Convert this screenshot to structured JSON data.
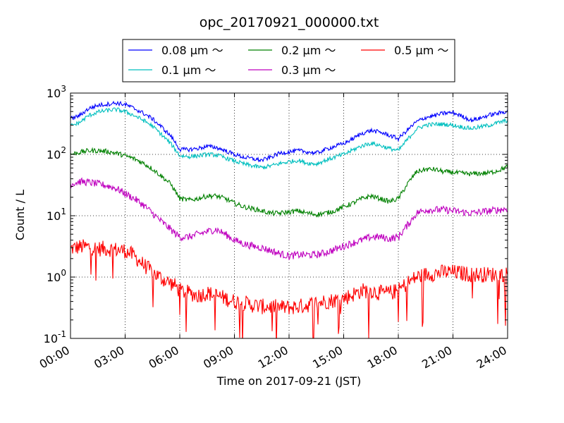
{
  "chart_data": {
    "type": "line",
    "title": "opc_20170921_000000.txt",
    "xlabel": "Time on 2017-09-21 (JST)",
    "ylabel": "Count / L",
    "x_unit": "hours",
    "xlim": [
      0,
      24
    ],
    "ylim": [
      0.1,
      1000
    ],
    "y_scale": "log",
    "grid": true,
    "legend_position": "top-center",
    "legend_columns": 3,
    "x_ticks": [
      0,
      3,
      6,
      9,
      12,
      15,
      18,
      21,
      24
    ],
    "x_tick_labels": [
      "00:00",
      "03:00",
      "06:00",
      "09:00",
      "12:00",
      "15:00",
      "18:00",
      "21:00",
      "24:00"
    ],
    "y_ticks": [
      0.1,
      1,
      10,
      100,
      1000
    ],
    "y_tick_labels": [
      {
        "base": "10",
        "exp": "-1"
      },
      {
        "base": "10",
        "exp": "0"
      },
      {
        "base": "10",
        "exp": "1"
      },
      {
        "base": "10",
        "exp": "2"
      },
      {
        "base": "10",
        "exp": "3"
      }
    ],
    "x": [
      0,
      0.5,
      1,
      1.5,
      2,
      2.5,
      3,
      3.5,
      4,
      4.5,
      5,
      5.5,
      5.8,
      6,
      6.5,
      7,
      7.5,
      8,
      8.5,
      9,
      9.5,
      10,
      10.5,
      11,
      11.5,
      12,
      12.5,
      13,
      13.5,
      14,
      14.5,
      15,
      15.5,
      16,
      16.5,
      17,
      17.5,
      18,
      18.5,
      19,
      19.5,
      20,
      20.5,
      21,
      21.5,
      22,
      22.5,
      23,
      23.5,
      24
    ],
    "series": [
      {
        "name": "0.08 μm ～",
        "color": "#0000ff",
        "values": [
          380,
          430,
          560,
          630,
          660,
          690,
          650,
          560,
          470,
          380,
          280,
          200,
          150,
          120,
          120,
          125,
          135,
          130,
          115,
          100,
          90,
          85,
          80,
          90,
          105,
          110,
          115,
          110,
          105,
          120,
          135,
          150,
          180,
          220,
          245,
          230,
          205,
          180,
          250,
          340,
          400,
          430,
          470,
          480,
          420,
          360,
          390,
          440,
          470,
          510
        ]
      },
      {
        "name": "0.1 μm ～",
        "color": "#00bfbf",
        "values": [
          290,
          330,
          430,
          490,
          520,
          540,
          500,
          430,
          360,
          290,
          210,
          150,
          115,
          95,
          92,
          95,
          100,
          98,
          88,
          78,
          70,
          65,
          61,
          65,
          71,
          76,
          80,
          72,
          70,
          80,
          90,
          100,
          118,
          138,
          152,
          140,
          125,
          115,
          175,
          260,
          300,
          310,
          310,
          300,
          280,
          265,
          280,
          300,
          330,
          360
        ]
      },
      {
        "name": "0.2 μm ～",
        "color": "#008000",
        "values": [
          100,
          108,
          115,
          115,
          112,
          105,
          95,
          85,
          72,
          58,
          44,
          33,
          24,
          19,
          18,
          19,
          21,
          21,
          19,
          16,
          14,
          13,
          12,
          11,
          11,
          11.5,
          12,
          11,
          10.5,
          11,
          12,
          14,
          16,
          19,
          21,
          19,
          17,
          19,
          33,
          52,
          57,
          57,
          52,
          51,
          49,
          48,
          49,
          50,
          55,
          63
        ]
      },
      {
        "name": "0.3 μm ～",
        "color": "#bf00bf",
        "values": [
          33,
          36,
          35,
          33,
          31,
          28,
          23,
          19,
          15,
          11,
          8,
          6,
          5,
          4.5,
          4.5,
          5,
          5.5,
          6,
          5,
          4,
          3.5,
          3.2,
          3,
          2.7,
          2.4,
          2.2,
          2.3,
          2.3,
          2.3,
          2.5,
          2.8,
          3.2,
          3.6,
          4,
          4.5,
          4.5,
          4.2,
          4.5,
          7,
          11,
          12.5,
          12.5,
          12.5,
          12,
          11.5,
          11,
          11.5,
          12,
          12.5,
          13
        ]
      },
      {
        "name": "0.5 μm ～",
        "color": "#ff0000",
        "values": [
          2.9,
          3.1,
          3.1,
          2.9,
          2.9,
          2.8,
          2.7,
          2.2,
          1.6,
          1.2,
          0.95,
          0.8,
          0.7,
          0.6,
          0.55,
          0.5,
          0.55,
          0.5,
          0.45,
          0.4,
          0.38,
          0.35,
          0.33,
          0.33,
          0.32,
          0.32,
          0.33,
          0.35,
          0.38,
          0.4,
          0.42,
          0.45,
          0.52,
          0.6,
          0.6,
          0.55,
          0.55,
          0.6,
          0.8,
          1.0,
          1.1,
          1.15,
          1.2,
          1.2,
          1.15,
          1.1,
          1.1,
          1.1,
          1.1,
          1.15
        ]
      }
    ]
  }
}
